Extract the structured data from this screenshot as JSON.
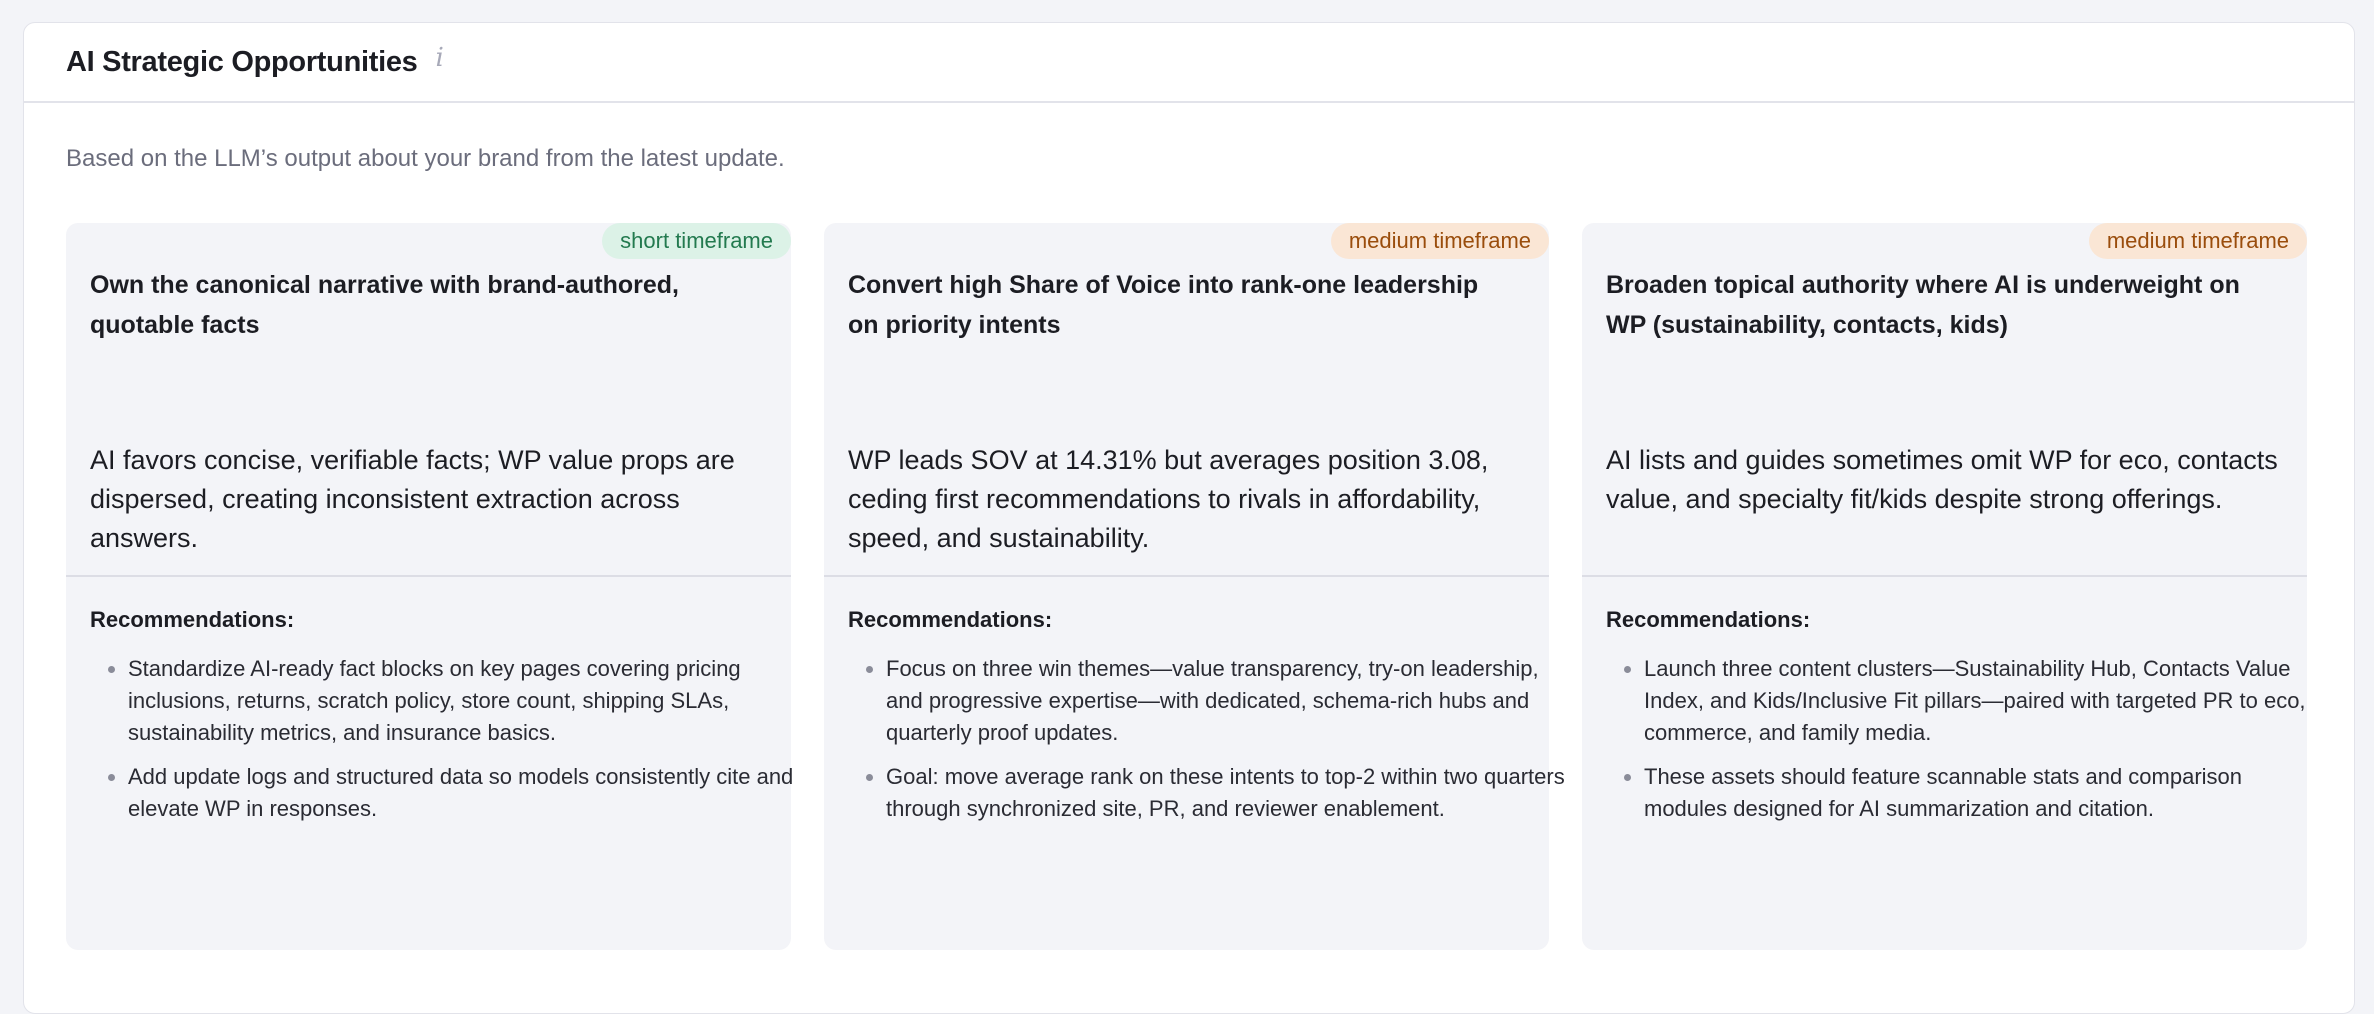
{
  "header": {
    "title": "AI Strategic Opportunities",
    "info_icon": "info-icon"
  },
  "subtitle": "Based on the LLM’s output about your brand from the latest update.",
  "recommendations_label": "Recommendations:",
  "cards": [
    {
      "badge": "short timeframe",
      "badge_color": "#237a4f",
      "title": "Own the canonical narrative with brand-authored, quotable facts",
      "description": "AI favors concise, verifiable facts; WP value props are dispersed, creating inconsistent extraction across answers.",
      "recommendations": [
        "Standardize AI-ready fact blocks on key pages covering pricing inclusions, returns, scratch policy, store count, shipping SLAs, sustainability metrics, and insurance basics.",
        "Add update logs and structured data so models consistently cite and elevate WP in responses."
      ]
    },
    {
      "badge": "medium timeframe",
      "badge_color": "#9a4d0c",
      "title": "Convert high Share of Voice into rank-one leadership on priority intents",
      "description": "WP leads SOV at 14.31% but averages position 3.08, ceding first recommendations to rivals in affordability, speed, and sustainability.",
      "recommendations": [
        "Focus on three win themes—value transparency, try-on leadership, and progressive expertise—with dedicated, schema-rich hubs and quarterly proof updates.",
        "Goal: move average rank on these intents to top-2 within two quarters through synchronized site, PR, and reviewer enablement."
      ]
    },
    {
      "badge": "medium timeframe",
      "badge_color": "#9a4d0c",
      "title": "Broaden topical authority where AI is underweight on WP (sustainability, contacts, kids)",
      "description": "AI lists and guides sometimes omit WP for eco, contacts value, and specialty fit/kids despite strong offerings.",
      "recommendations": [
        "Launch three content clusters—Sustainability Hub, Contacts Value Index, and Kids/Inclusive Fit pillars—paired with targeted PR to eco, commerce, and family media.",
        "These assets should feature scannable stats and comparison modules designed for AI summarization and citation."
      ]
    }
  ]
}
